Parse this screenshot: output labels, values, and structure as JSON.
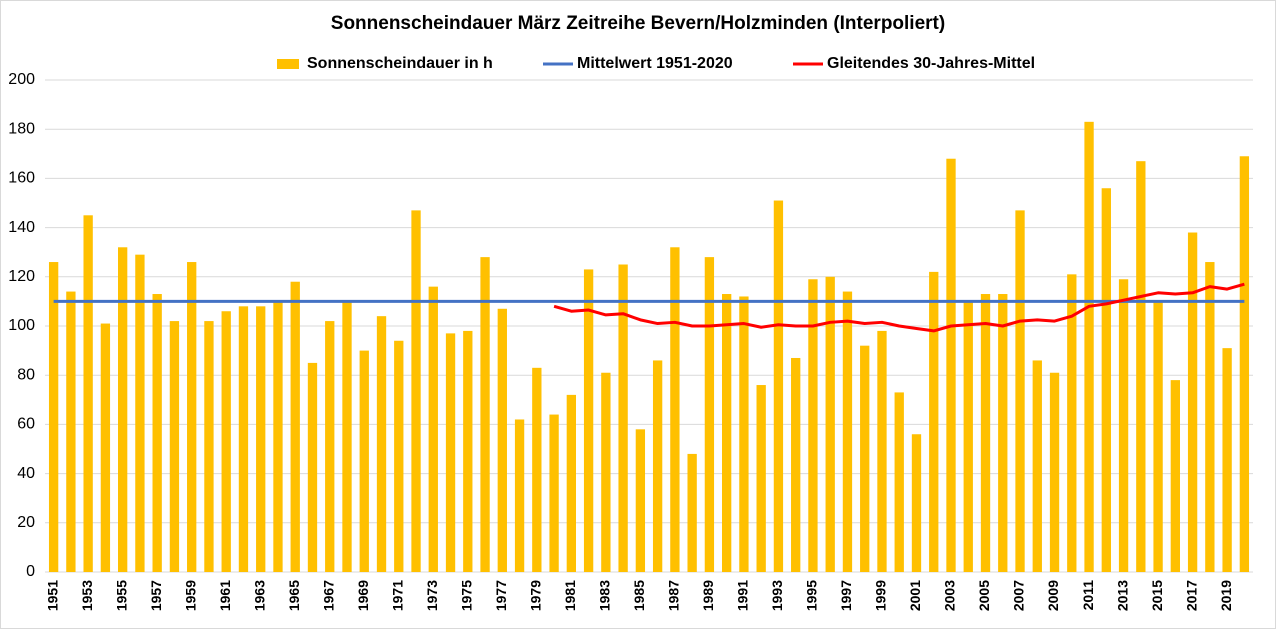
{
  "chart_data": {
    "type": "bar",
    "title": "Sonnenscheindauer März Zeitreihe Bevern/Holzminden (Interpoliert)",
    "categories": [
      "1951",
      null,
      "1953",
      null,
      "1955",
      null,
      "1957",
      null,
      "1959",
      null,
      "1961",
      null,
      "1963",
      null,
      "1965",
      null,
      "1967",
      null,
      "1969",
      null,
      "1971",
      null,
      "1973",
      null,
      "1975",
      null,
      "1977",
      null,
      "1979",
      null,
      "1981",
      null,
      "1983",
      null,
      "1985",
      null,
      "1987",
      null,
      "1989",
      null,
      "1991",
      null,
      "1993",
      null,
      "1995",
      null,
      "1997",
      null,
      "1999",
      null,
      "2001",
      null,
      "2003",
      null,
      "2005",
      null,
      "2007",
      null,
      "2009",
      null,
      "2011",
      null,
      "2013",
      null,
      "2015",
      null,
      "2017",
      null,
      "2019",
      null
    ],
    "series": [
      {
        "name": "Sonnenscheindauer in h",
        "type": "bar",
        "color": "#ffc000",
        "values": [
          126,
          114,
          145,
          101,
          132,
          129,
          113,
          102,
          126,
          102,
          106,
          108,
          108,
          110,
          118,
          85,
          102,
          110,
          90,
          104,
          94,
          147,
          116,
          97,
          98,
          128,
          107,
          62,
          83,
          64,
          72,
          123,
          81,
          125,
          58,
          86,
          132,
          48,
          128,
          113,
          112,
          76,
          151,
          87,
          119,
          120,
          114,
          92,
          98,
          73,
          56,
          122,
          168,
          110,
          113,
          113,
          147,
          86,
          81,
          121,
          183,
          156,
          119,
          167,
          110,
          78,
          138,
          126,
          91,
          169
        ]
      },
      {
        "name": "Mittelwert 1951-2020",
        "type": "line",
        "color": "#4472c4",
        "values": [
          110,
          110,
          110,
          110,
          110,
          110,
          110,
          110,
          110,
          110,
          110,
          110,
          110,
          110,
          110,
          110,
          110,
          110,
          110,
          110,
          110,
          110,
          110,
          110,
          110,
          110,
          110,
          110,
          110,
          110,
          110,
          110,
          110,
          110,
          110,
          110,
          110,
          110,
          110,
          110,
          110,
          110,
          110,
          110,
          110,
          110,
          110,
          110,
          110,
          110,
          110,
          110,
          110,
          110,
          110,
          110,
          110,
          110,
          110,
          110,
          110,
          110,
          110,
          110,
          110,
          110,
          110,
          110,
          110,
          110
        ]
      },
      {
        "name": "Gleitendes 30-Jahres-Mittel",
        "type": "line",
        "color": "#ff0000",
        "values": [
          null,
          null,
          null,
          null,
          null,
          null,
          null,
          null,
          null,
          null,
          null,
          null,
          null,
          null,
          null,
          null,
          null,
          null,
          null,
          null,
          null,
          null,
          null,
          null,
          null,
          null,
          null,
          null,
          null,
          108,
          106,
          106.5,
          104.5,
          105,
          102.5,
          101,
          101.5,
          100,
          100,
          100.5,
          101,
          99.5,
          100.5,
          100,
          100,
          101.5,
          102,
          101,
          101.5,
          100,
          99,
          98,
          100,
          100.5,
          101,
          100,
          102,
          102.5,
          102,
          104,
          108,
          109,
          110.5,
          112,
          113.5,
          113,
          113.5,
          116,
          115,
          117
        ]
      }
    ],
    "ylim": [
      0,
      200
    ],
    "yticks": [
      0,
      20,
      40,
      60,
      80,
      100,
      120,
      140,
      160,
      180,
      200
    ],
    "grid": true,
    "legend": "top"
  }
}
